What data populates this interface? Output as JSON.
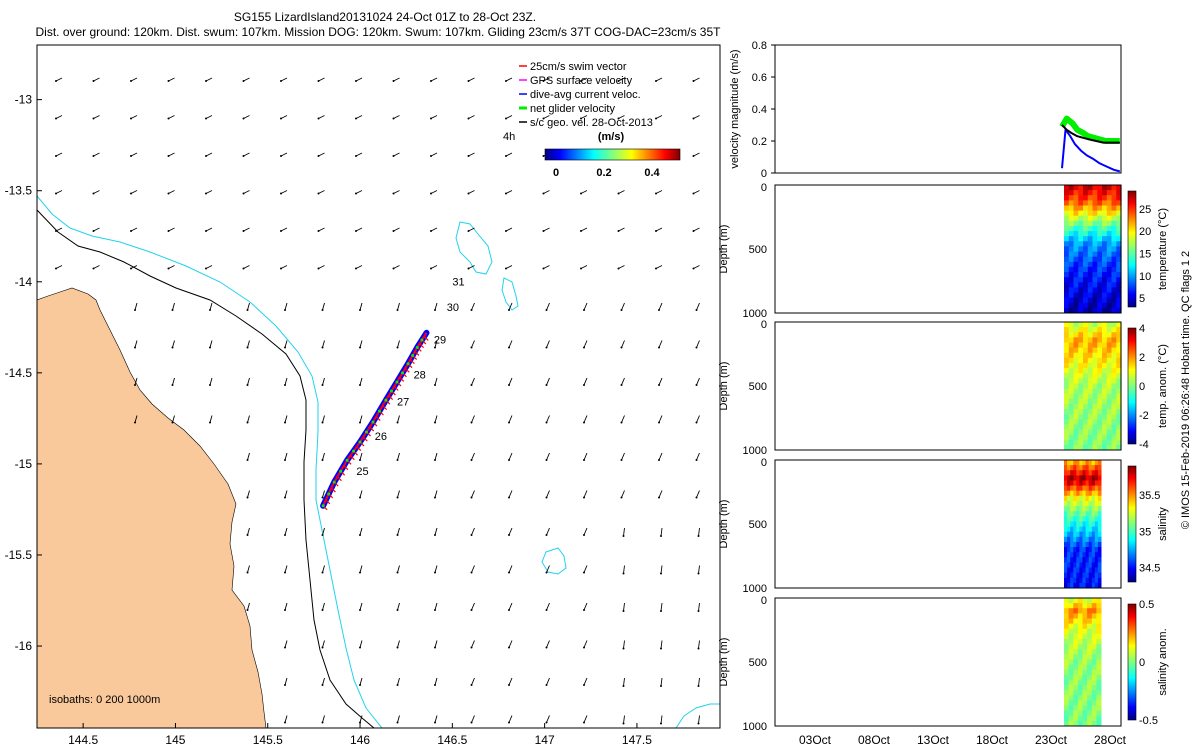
{
  "header": {
    "title": "SG155 LizardIsland20131024 24-Oct 01Z to 28-Oct 23Z.",
    "subtitle": "Dist. over ground: 120km. Dist. swum: 107km. Mission DOG: 120km. Swum: 107km. Gliding 23cm/s 37T COG-DAC=23cm/s 35T"
  },
  "footer": {
    "credit": "© IMOS 15-Feb-2019 06:26:48 Hobart time. QC flags 1  2"
  },
  "colors": {
    "land": "#f9c99b",
    "isobath_200": "#000000",
    "isobath_1000": "#22d3ee",
    "swim_vector": "#ff0000",
    "gps_surface": "#ff00ff",
    "dive_avg_current": "#0000ff",
    "net_glider": "#00ee00",
    "geo_vel": "#000000"
  },
  "map": {
    "legend": [
      {
        "label": "25cm/s swim vector",
        "color": "#ff0000"
      },
      {
        "label": "GPS surface velocity",
        "color": "#ff00ff"
      },
      {
        "label": "dive-avg current veloc.",
        "color": "#0000ff"
      },
      {
        "label": "net glider velocity",
        "color": "#00ee00"
      },
      {
        "label": "s/c geo. vel. 28-Oct-2013",
        "color": "#000000"
      }
    ],
    "time_label": "4h",
    "colorbar": {
      "title": "(m/s)",
      "ticks": [
        "0",
        "0.2",
        "0.4"
      ]
    },
    "isobath_label": "isobaths: 0   200  1000m",
    "day_labels": [
      {
        "label": "25",
        "lon": 145.98,
        "lat": -15.06
      },
      {
        "label": "26",
        "lon": 146.08,
        "lat": -14.87
      },
      {
        "label": "27",
        "lon": 146.2,
        "lat": -14.68
      },
      {
        "label": "28",
        "lon": 146.29,
        "lat": -14.53
      },
      {
        "label": "29",
        "lon": 146.4,
        "lat": -14.34
      },
      {
        "label": "30",
        "lon": 146.47,
        "lat": -14.16
      },
      {
        "label": "31",
        "lon": 146.5,
        "lat": -14.02
      }
    ]
  },
  "chart_data": [
    {
      "type": "line",
      "panel": "glider track map",
      "xticks": [
        "144.5",
        "145",
        "145.5",
        "146",
        "146.5",
        "147",
        "147.5"
      ],
      "yticks": [
        "-13",
        "-13.5",
        "-14",
        "-14.5",
        "-15",
        "-15.5",
        "-16"
      ],
      "xlim": [
        144.25,
        147.95
      ],
      "ylim": [
        -16.45,
        -12.7
      ],
      "track": {
        "lon": [
          145.8,
          145.86,
          145.93,
          146.0,
          146.07,
          146.14,
          146.2,
          146.26,
          146.31,
          146.36
        ],
        "lat": [
          -15.23,
          -15.1,
          -14.98,
          -14.88,
          -14.77,
          -14.65,
          -14.55,
          -14.45,
          -14.36,
          -14.28
        ]
      }
    },
    {
      "type": "line",
      "panel": "velocity magnitude",
      "ylabel": "velocity magnitude (m/s)",
      "ylim": [
        0,
        0.8
      ],
      "yticks": [
        "0",
        "0.2",
        "0.4",
        "0.6",
        "0.8"
      ],
      "series": [
        {
          "color": "#00ee00",
          "x": [
            24.0,
            24.4,
            24.9,
            25.3,
            25.8,
            26.2,
            26.7,
            27.2,
            27.7,
            28.3,
            28.9
          ],
          "y": [
            0.29,
            0.34,
            0.31,
            0.27,
            0.25,
            0.23,
            0.22,
            0.21,
            0.2,
            0.2,
            0.2
          ]
        },
        {
          "color": "#0000ff",
          "x": [
            24.0,
            24.3,
            24.7,
            25.1,
            25.6,
            26.1,
            26.6,
            27.2,
            27.8,
            28.4,
            28.9
          ],
          "y": [
            0.03,
            0.27,
            0.23,
            0.18,
            0.14,
            0.11,
            0.09,
            0.06,
            0.04,
            0.02,
            0.01
          ]
        },
        {
          "color": "#000000",
          "x": [
            24.0,
            24.4,
            24.8,
            25.3,
            25.8,
            26.3,
            26.9,
            27.5,
            28.2,
            28.9
          ],
          "y": [
            0.3,
            0.27,
            0.25,
            0.23,
            0.22,
            0.21,
            0.2,
            0.19,
            0.19,
            0.19
          ]
        }
      ]
    },
    {
      "type": "heatmap",
      "panel": "temperature",
      "ylabel": "Depth (m)",
      "cbar_label": "temperature (°C)",
      "yticks": [
        "0",
        "500",
        "1000"
      ],
      "cticks": [
        "25",
        "20",
        "15",
        "10",
        "5"
      ],
      "clim": [
        3,
        29
      ],
      "profile": [
        {
          "depth": 0,
          "value": 27.5
        },
        {
          "depth": 130,
          "value": 24
        },
        {
          "depth": 220,
          "value": 20
        },
        {
          "depth": 320,
          "value": 15
        },
        {
          "depth": 450,
          "value": 10
        },
        {
          "depth": 650,
          "value": 7
        },
        {
          "depth": 1000,
          "value": 4
        }
      ]
    },
    {
      "type": "heatmap",
      "panel": "temperature anomaly",
      "ylabel": "Depth (m)",
      "cbar_label": "temp. anom. (°C)",
      "yticks": [
        "0",
        "500",
        "1000"
      ],
      "cticks": [
        "4",
        "2",
        "0",
        "-2",
        "-4"
      ],
      "clim": [
        -4,
        4
      ],
      "profile": [
        {
          "depth": 0,
          "value": 0.5
        },
        {
          "depth": 150,
          "value": 1.8
        },
        {
          "depth": 300,
          "value": 1.2
        },
        {
          "depth": 500,
          "value": 0.4
        },
        {
          "depth": 1000,
          "value": 0
        }
      ]
    },
    {
      "type": "heatmap",
      "panel": "salinity",
      "ylabel": "Depth (m)",
      "cbar_label": "salinity",
      "yticks": [
        "0",
        "500",
        "1000"
      ],
      "cticks": [
        "35.5",
        "35",
        "34.5"
      ],
      "clim": [
        34.3,
        35.9
      ],
      "profile": [
        {
          "depth": 0,
          "value": 35.4
        },
        {
          "depth": 150,
          "value": 35.85
        },
        {
          "depth": 300,
          "value": 35.3
        },
        {
          "depth": 500,
          "value": 34.9
        },
        {
          "depth": 700,
          "value": 34.55
        },
        {
          "depth": 1000,
          "value": 34.5
        }
      ]
    },
    {
      "type": "heatmap",
      "panel": "salinity anomaly",
      "ylabel": "Depth (m)",
      "cbar_label": "salinity anom.",
      "yticks": [
        "0",
        "500",
        "1000"
      ],
      "cticks": [
        "0.5",
        "0",
        "-0.5"
      ],
      "clim": [
        -0.5,
        0.5
      ],
      "xticks": [
        "03Oct",
        "08Oct",
        "13Oct",
        "18Oct",
        "23Oct",
        "28Oct"
      ],
      "profile": [
        {
          "depth": 0,
          "value": 0.08
        },
        {
          "depth": 100,
          "value": 0.25
        },
        {
          "depth": 250,
          "value": 0.1
        },
        {
          "depth": 500,
          "value": 0.02
        },
        {
          "depth": 1000,
          "value": 0
        }
      ]
    }
  ]
}
